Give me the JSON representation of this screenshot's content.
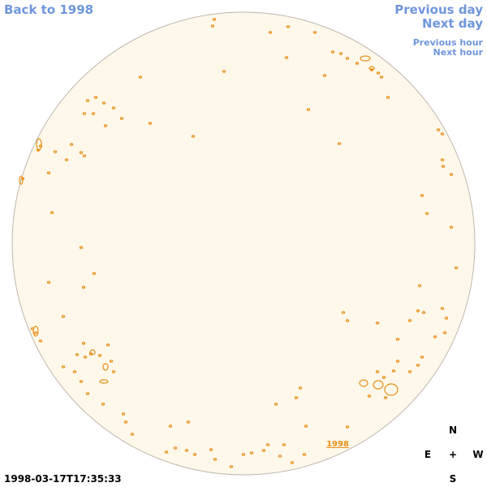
{
  "nav": {
    "back": "Back to 1998",
    "previous_day": "Previous day",
    "next_day": "Next day",
    "previous_hour": "Previous hour",
    "next_hour": "Next hour"
  },
  "year_link": "1998",
  "compass": {
    "north": "N",
    "east": "E",
    "center": "+",
    "west": "W",
    "south": "S"
  },
  "timestamp": "1998-03-17T17:35:33"
}
